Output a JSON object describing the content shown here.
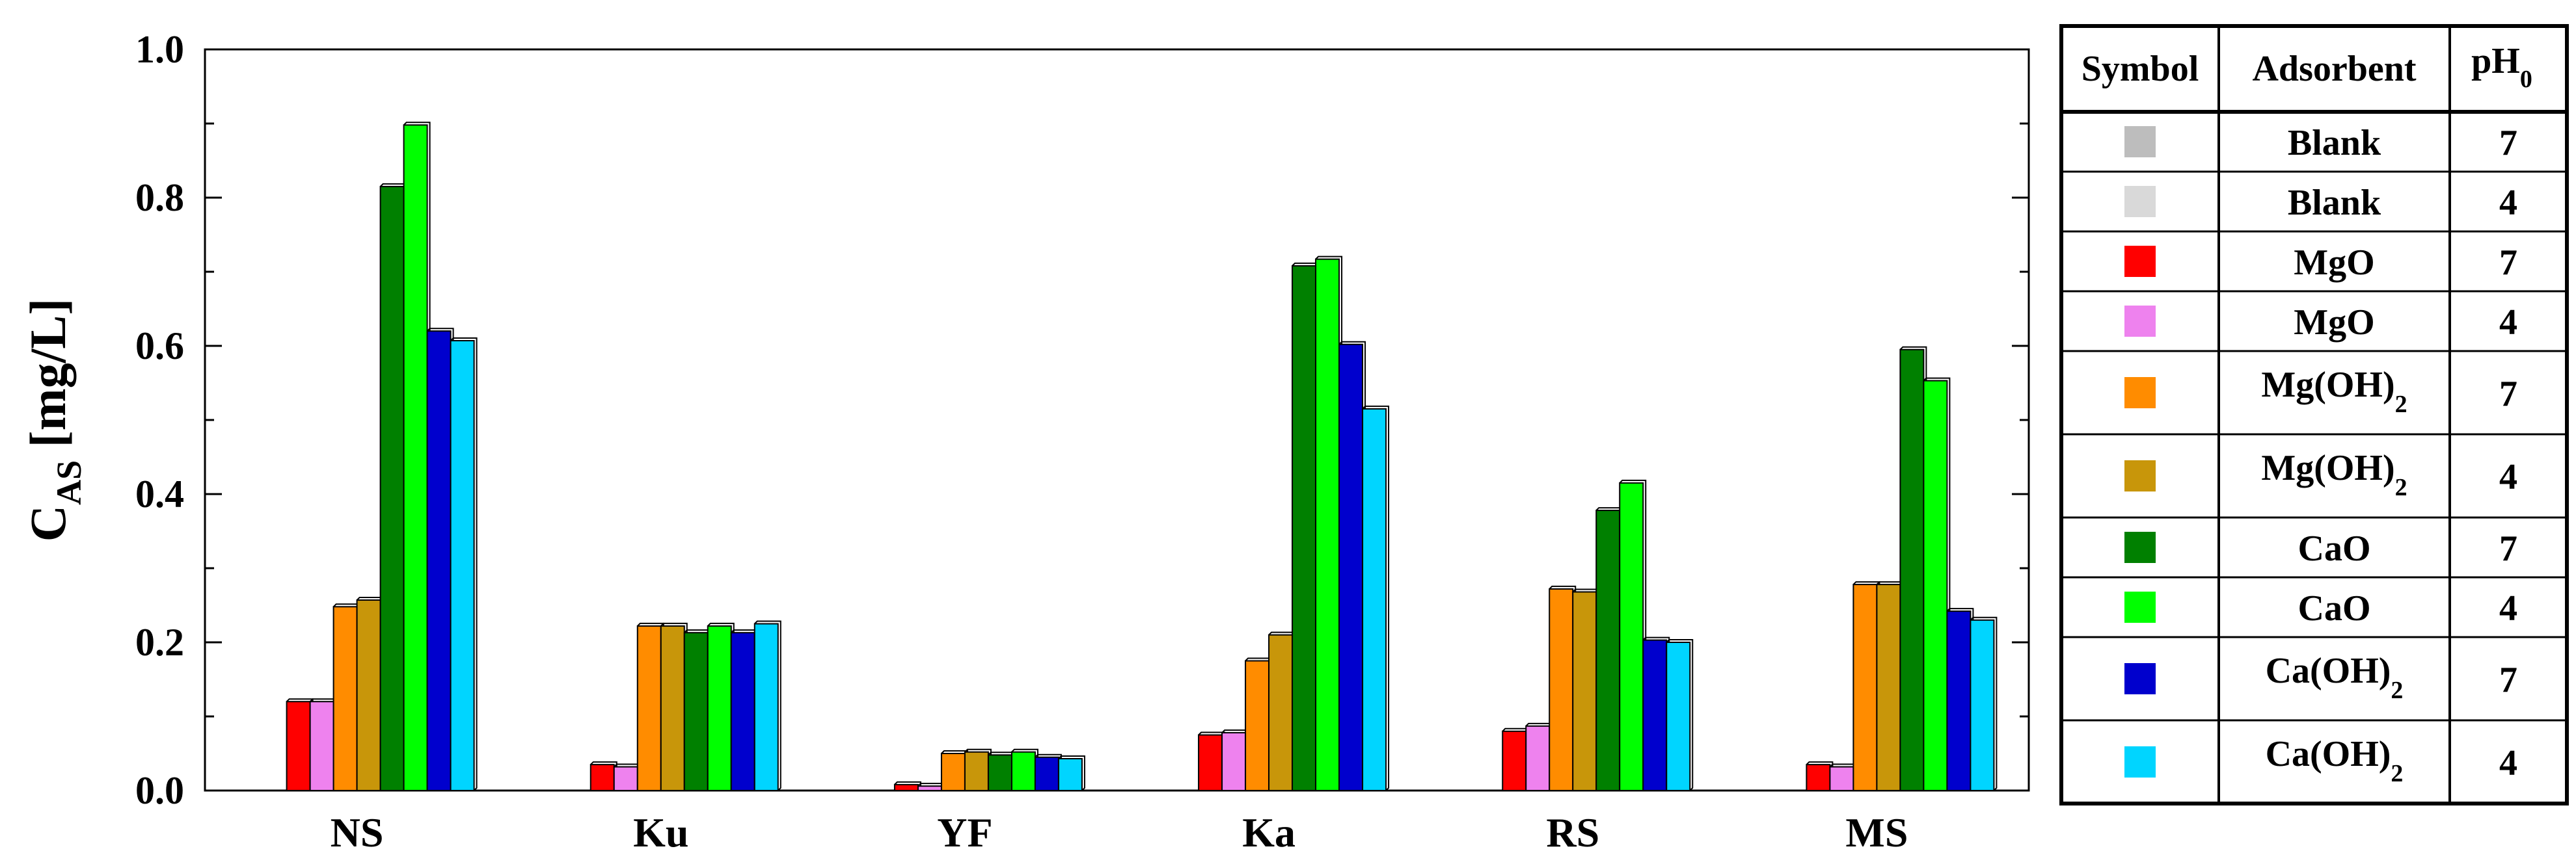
{
  "chart_data": {
    "type": "bar",
    "ylabel": "C",
    "ylabel_subscript": "AS",
    "ylabel_unit": "[mg/L]",
    "ylim": [
      0,
      1.0
    ],
    "yticks": [
      {
        "value": 0.0,
        "label": "0.0"
      },
      {
        "value": 0.2,
        "label": "0.2"
      },
      {
        "value": 0.4,
        "label": "0.4"
      },
      {
        "value": 0.6,
        "label": "0.6"
      },
      {
        "value": 0.8,
        "label": "0.8"
      },
      {
        "value": 1.0,
        "label": "1.0"
      }
    ],
    "grid": false,
    "legend_position": "right",
    "categories": [
      "NS",
      "Ku",
      "YF",
      "Ka",
      "RS",
      "MS"
    ],
    "series": [
      {
        "color": "#bdbdbd",
        "values": [
          0,
          0,
          0,
          0,
          0,
          0
        ]
      },
      {
        "color": "#d9d9d9",
        "values": [
          0,
          0,
          0,
          0,
          0,
          0
        ]
      },
      {
        "color": "#ff0000",
        "values": [
          0.12,
          0.035,
          0.008,
          0.075,
          0.08,
          0.035
        ]
      },
      {
        "color": "#ee82ee",
        "values": [
          0.12,
          0.032,
          0.006,
          0.078,
          0.087,
          0.032
        ]
      },
      {
        "color": "#ff8c00",
        "values": [
          0.248,
          0.222,
          0.05,
          0.175,
          0.272,
          0.278
        ]
      },
      {
        "color": "#c8960a",
        "values": [
          0.257,
          0.222,
          0.052,
          0.21,
          0.268,
          0.278
        ]
      },
      {
        "color": "#008000",
        "values": [
          0.815,
          0.213,
          0.048,
          0.708,
          0.378,
          0.595
        ]
      },
      {
        "color": "#00ff00",
        "values": [
          0.898,
          0.222,
          0.052,
          0.717,
          0.415,
          0.553
        ]
      },
      {
        "color": "#0000cd",
        "values": [
          0.62,
          0.213,
          0.045,
          0.602,
          0.203,
          0.242
        ]
      },
      {
        "color": "#00d5ff",
        "values": [
          0.607,
          0.225,
          0.043,
          0.515,
          0.2,
          0.23
        ]
      }
    ]
  },
  "legend": {
    "headers": {
      "symbol": "Symbol",
      "adsorbent": "Adsorbent",
      "ph": "pH",
      "ph_sub": "0"
    },
    "rows": [
      {
        "color": "#bdbdbd",
        "adsorbent": "Blank",
        "sub": "",
        "ph": "7"
      },
      {
        "color": "#d9d9d9",
        "adsorbent": "Blank",
        "sub": "",
        "ph": "4"
      },
      {
        "color": "#ff0000",
        "adsorbent": "MgO",
        "sub": "",
        "ph": "7"
      },
      {
        "color": "#ee82ee",
        "adsorbent": "MgO",
        "sub": "",
        "ph": "4"
      },
      {
        "color": "#ff8c00",
        "adsorbent": "Mg(OH)",
        "sub": "2",
        "ph": "7"
      },
      {
        "color": "#c8960a",
        "adsorbent": "Mg(OH)",
        "sub": "2",
        "ph": "4"
      },
      {
        "color": "#008000",
        "adsorbent": "CaO",
        "sub": "",
        "ph": "7"
      },
      {
        "color": "#00ff00",
        "adsorbent": "CaO",
        "sub": "",
        "ph": "4"
      },
      {
        "color": "#0000cd",
        "adsorbent": "Ca(OH)",
        "sub": "2",
        "ph": "7"
      },
      {
        "color": "#00d5ff",
        "adsorbent": "Ca(OH)",
        "sub": "2",
        "ph": "4"
      }
    ]
  }
}
